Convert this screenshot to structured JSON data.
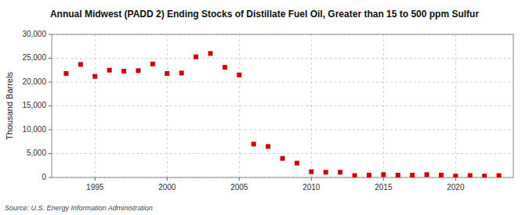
{
  "chart_data": {
    "type": "scatter",
    "title": "Annual Midwest (PADD 2) Ending Stocks of Distillate Fuel Oil, Greater than 15 to 500 ppm Sulfur",
    "ylabel": "Thousand Barrels",
    "annotations": [
      "Source: U.S. Energy Information Administration"
    ],
    "x": [
      1993,
      1994,
      1995,
      1996,
      1997,
      1998,
      1999,
      2000,
      2001,
      2002,
      2003,
      2004,
      2005,
      2006,
      2007,
      2008,
      2009,
      2010,
      2011,
      2012,
      2013,
      2014,
      2015,
      2016,
      2017,
      2018,
      2019,
      2020,
      2021,
      2022,
      2023
    ],
    "values": [
      21800,
      23700,
      21200,
      22500,
      22300,
      22400,
      23800,
      21800,
      21900,
      25300,
      26000,
      23100,
      21500,
      7000,
      6500,
      4000,
      3000,
      1200,
      1100,
      1100,
      400,
      500,
      600,
      500,
      500,
      600,
      500,
      300,
      400,
      300,
      400
    ],
    "color": "#cc0000",
    "marker": "square",
    "xlim": [
      1992,
      2024
    ],
    "xticks": [
      1995,
      2000,
      2005,
      2010,
      2015,
      2020
    ],
    "ylim": [
      0,
      30000
    ],
    "yticks": [
      0,
      {
        "value": 5000,
        "label": "5,000"
      },
      {
        "value": 10000,
        "label": "10,000"
      },
      {
        "value": 15000,
        "label": "15,000"
      },
      {
        "value": 20000,
        "label": "20,000"
      },
      {
        "value": 25000,
        "label": "25,000"
      },
      {
        "value": 30000,
        "label": "30,000"
      }
    ],
    "grid": true
  }
}
